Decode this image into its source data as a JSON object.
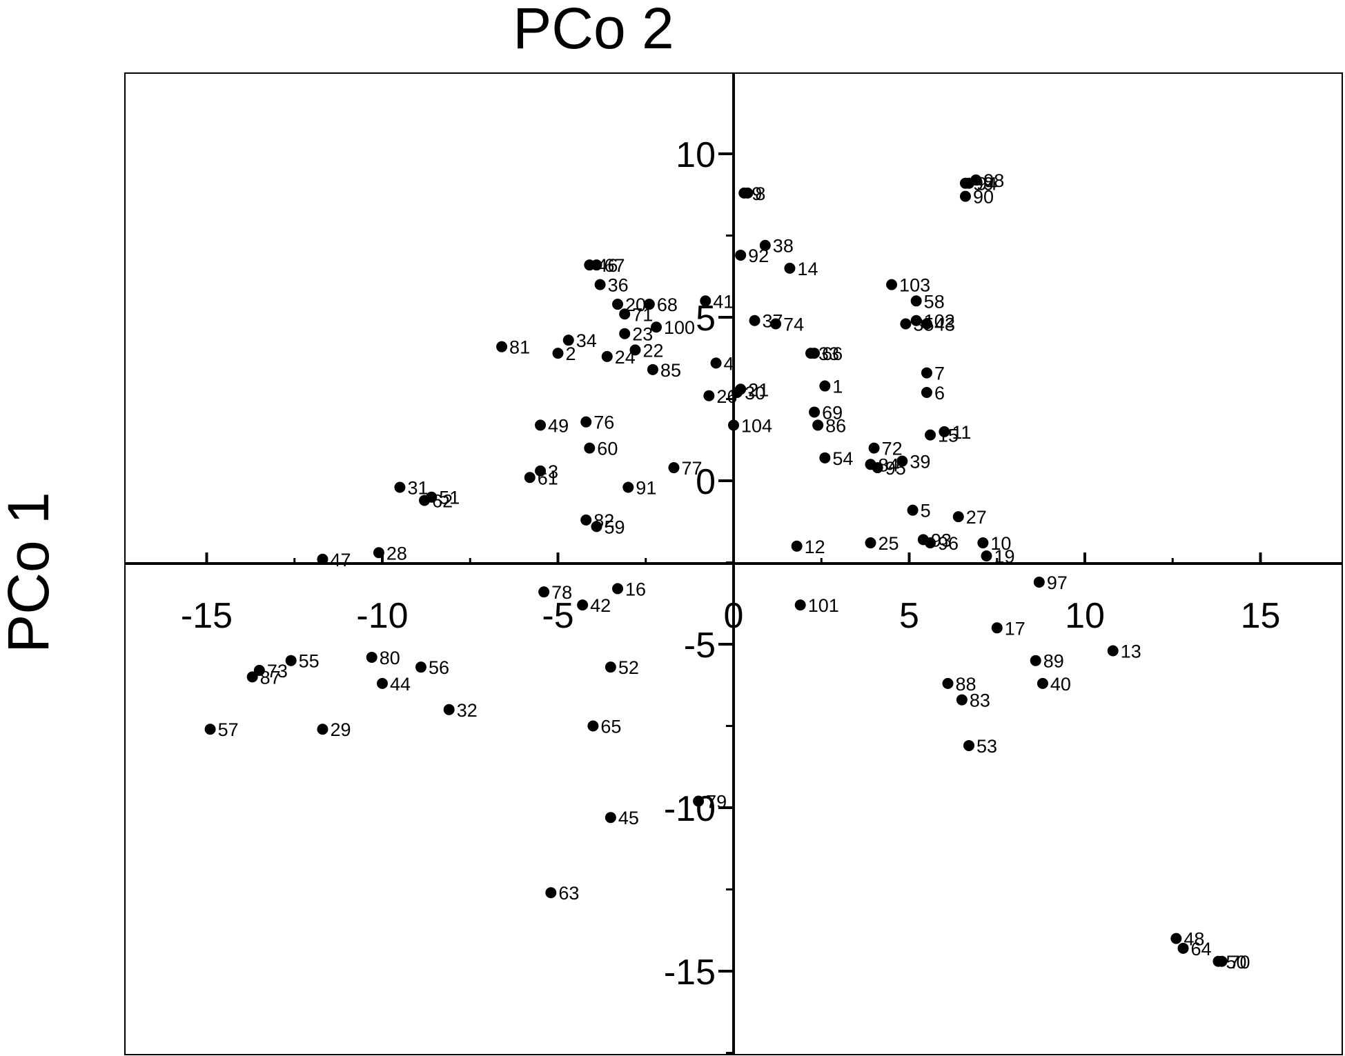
{
  "chart_data": {
    "type": "scatter",
    "title": "",
    "xlabel": "PCo 2",
    "ylabel": "PCo 1",
    "xlim": [
      -17.5,
      17.5
    ],
    "ylim": [
      -17.5,
      12.5
    ],
    "xticks": [
      -15,
      -10,
      -5,
      0,
      5,
      10,
      15
    ],
    "yticks": [
      -15,
      -10,
      -5,
      0,
      5,
      10
    ],
    "xtick_labels": [
      "-15",
      "-10",
      "-5",
      "0",
      "5",
      "10",
      "15"
    ],
    "ytick_labels": [
      "-15",
      "-10",
      "-5",
      "0",
      "5",
      "10"
    ],
    "grid": false,
    "point_color": "#000000",
    "points": [
      {
        "label": "1",
        "x": 2.6,
        "y": 2.9
      },
      {
        "label": "2",
        "x": -5.0,
        "y": 3.9
      },
      {
        "label": "3",
        "x": -5.5,
        "y": 0.3
      },
      {
        "label": "4",
        "x": -0.5,
        "y": 3.6
      },
      {
        "label": "5",
        "x": 5.1,
        "y": -0.9
      },
      {
        "label": "6",
        "x": 5.5,
        "y": 2.7
      },
      {
        "label": "7",
        "x": 5.5,
        "y": 3.3
      },
      {
        "label": "8",
        "x": 0.4,
        "y": 8.8
      },
      {
        "label": "9",
        "x": 0.3,
        "y": 8.8
      },
      {
        "label": "10",
        "x": 7.1,
        "y": -1.9
      },
      {
        "label": "11",
        "x": 6.0,
        "y": 1.5
      },
      {
        "label": "12",
        "x": 1.8,
        "y": -2.0
      },
      {
        "label": "13",
        "x": 10.8,
        "y": -5.2
      },
      {
        "label": "14",
        "x": 1.6,
        "y": 6.5
      },
      {
        "label": "15",
        "x": 5.6,
        "y": 1.4
      },
      {
        "label": "16",
        "x": -3.3,
        "y": -3.3
      },
      {
        "label": "17",
        "x": 7.5,
        "y": -4.5
      },
      {
        "label": "19",
        "x": 7.2,
        "y": -2.3
      },
      {
        "label": "20",
        "x": -3.3,
        "y": 5.4
      },
      {
        "label": "21",
        "x": 0.2,
        "y": 2.8
      },
      {
        "label": "22",
        "x": -2.8,
        "y": 4.0
      },
      {
        "label": "23",
        "x": -3.1,
        "y": 4.5
      },
      {
        "label": "24",
        "x": -3.6,
        "y": 3.8
      },
      {
        "label": "25",
        "x": 3.9,
        "y": -1.9
      },
      {
        "label": "26",
        "x": -0.7,
        "y": 2.6
      },
      {
        "label": "27",
        "x": 6.4,
        "y": -1.1
      },
      {
        "label": "28",
        "x": -10.1,
        "y": -2.2
      },
      {
        "label": "29",
        "x": -11.7,
        "y": -7.6
      },
      {
        "label": "30",
        "x": 0.1,
        "y": 2.7
      },
      {
        "label": "31",
        "x": -9.5,
        "y": -0.2
      },
      {
        "label": "32",
        "x": -8.1,
        "y": -7.0
      },
      {
        "label": "33",
        "x": 2.2,
        "y": 3.9
      },
      {
        "label": "34",
        "x": -4.7,
        "y": 4.3
      },
      {
        "label": "35",
        "x": 4.9,
        "y": 4.8
      },
      {
        "label": "36",
        "x": -3.8,
        "y": 6.0
      },
      {
        "label": "37",
        "x": 0.6,
        "y": 4.9
      },
      {
        "label": "38",
        "x": 0.9,
        "y": 7.2
      },
      {
        "label": "39",
        "x": 4.8,
        "y": 0.6
      },
      {
        "label": "40",
        "x": 8.8,
        "y": -6.2
      },
      {
        "label": "41",
        "x": -0.8,
        "y": 5.5
      },
      {
        "label": "42",
        "x": -4.3,
        "y": -3.8
      },
      {
        "label": "43",
        "x": 5.5,
        "y": 4.8
      },
      {
        "label": "44",
        "x": -10.0,
        "y": -6.2
      },
      {
        "label": "45",
        "x": -3.5,
        "y": -10.3
      },
      {
        "label": "46",
        "x": -4.1,
        "y": 6.6
      },
      {
        "label": "47",
        "x": -11.7,
        "y": -2.4
      },
      {
        "label": "48",
        "x": 12.6,
        "y": -14.0
      },
      {
        "label": "49",
        "x": -5.5,
        "y": 1.7
      },
      {
        "label": "50",
        "x": 13.8,
        "y": -14.7
      },
      {
        "label": "51",
        "x": -8.6,
        "y": -0.5
      },
      {
        "label": "52",
        "x": -3.5,
        "y": -5.7
      },
      {
        "label": "53",
        "x": 6.7,
        "y": -8.1
      },
      {
        "label": "54",
        "x": 2.6,
        "y": 0.7
      },
      {
        "label": "55",
        "x": -12.6,
        "y": -5.5
      },
      {
        "label": "56",
        "x": -8.9,
        "y": -5.7
      },
      {
        "label": "57",
        "x": -14.9,
        "y": -7.6
      },
      {
        "label": "58",
        "x": 5.2,
        "y": 5.5
      },
      {
        "label": "59",
        "x": -3.9,
        "y": -1.4
      },
      {
        "label": "60",
        "x": -4.1,
        "y": 1.0
      },
      {
        "label": "61",
        "x": -5.8,
        "y": 0.1
      },
      {
        "label": "62",
        "x": -8.8,
        "y": -0.6
      },
      {
        "label": "63",
        "x": -5.2,
        "y": -12.6
      },
      {
        "label": "64",
        "x": 12.8,
        "y": -14.3
      },
      {
        "label": "65",
        "x": -4.0,
        "y": -7.5
      },
      {
        "label": "66",
        "x": 2.3,
        "y": 3.9
      },
      {
        "label": "67",
        "x": -3.9,
        "y": 6.6
      },
      {
        "label": "68",
        "x": -2.4,
        "y": 5.4
      },
      {
        "label": "69",
        "x": 2.3,
        "y": 2.1
      },
      {
        "label": "70",
        "x": 13.9,
        "y": -14.7
      },
      {
        "label": "71",
        "x": -3.1,
        "y": 5.1
      },
      {
        "label": "72",
        "x": 4.0,
        "y": 1.0
      },
      {
        "label": "73",
        "x": -13.5,
        "y": -5.8
      },
      {
        "label": "74",
        "x": 1.2,
        "y": 4.8
      },
      {
        "label": "76",
        "x": -4.2,
        "y": 1.8
      },
      {
        "label": "77",
        "x": -1.7,
        "y": 0.4
      },
      {
        "label": "78",
        "x": -5.4,
        "y": -3.4
      },
      {
        "label": "79",
        "x": -1.0,
        "y": -9.8
      },
      {
        "label": "80",
        "x": -10.3,
        "y": -5.4
      },
      {
        "label": "81",
        "x": -6.6,
        "y": 4.1
      },
      {
        "label": "82",
        "x": -4.2,
        "y": -1.2
      },
      {
        "label": "83",
        "x": 6.5,
        "y": -6.7
      },
      {
        "label": "84",
        "x": 3.9,
        "y": 0.5
      },
      {
        "label": "85",
        "x": -2.3,
        "y": 3.4
      },
      {
        "label": "86",
        "x": 2.4,
        "y": 1.7
      },
      {
        "label": "87",
        "x": -13.7,
        "y": -6.0
      },
      {
        "label": "88",
        "x": 6.1,
        "y": -6.2
      },
      {
        "label": "89",
        "x": 8.6,
        "y": -5.5
      },
      {
        "label": "90",
        "x": 6.6,
        "y": 8.7
      },
      {
        "label": "91",
        "x": -3.0,
        "y": -0.2
      },
      {
        "label": "92",
        "x": 0.2,
        "y": 6.9
      },
      {
        "label": "93",
        "x": 5.4,
        "y": -1.8
      },
      {
        "label": "94",
        "x": 6.7,
        "y": 9.1
      },
      {
        "label": "95",
        "x": 4.1,
        "y": 0.4
      },
      {
        "label": "96",
        "x": 5.6,
        "y": -1.9
      },
      {
        "label": "97",
        "x": 8.7,
        "y": -3.1
      },
      {
        "label": "98",
        "x": 6.9,
        "y": 9.2
      },
      {
        "label": "99",
        "x": 6.6,
        "y": 9.1
      },
      {
        "label": "100",
        "x": -2.2,
        "y": 4.7
      },
      {
        "label": "101",
        "x": 1.9,
        "y": -3.8
      },
      {
        "label": "102",
        "x": 5.2,
        "y": 4.9
      },
      {
        "label": "103",
        "x": 4.5,
        "y": 6.0
      },
      {
        "label": "104",
        "x": 0.0,
        "y": 1.7
      }
    ]
  }
}
